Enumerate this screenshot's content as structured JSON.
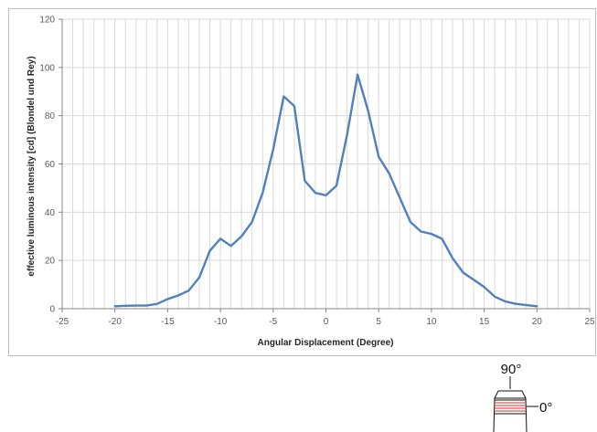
{
  "chart_data": {
    "type": "line",
    "title": "",
    "xlabel": "Angular Displacement (Degree)",
    "ylabel": "effective luminous intensity [cd] (Blondel und Rey)",
    "xlim": [
      -25,
      25
    ],
    "ylim": [
      0,
      120
    ],
    "xticks": [
      -25,
      -20,
      -15,
      -10,
      -5,
      0,
      5,
      10,
      15,
      20,
      25
    ],
    "yticks": [
      0,
      20,
      40,
      60,
      80,
      100,
      120
    ],
    "grid": true,
    "legend": "none",
    "series": [
      {
        "color": "#4f81bd",
        "x": [
          -20,
          -19,
          -18,
          -17,
          -16,
          -15,
          -14,
          -13,
          -12,
          -11,
          -10,
          -9,
          -8,
          -7,
          -6,
          -5,
          -4,
          -3,
          -2,
          -1,
          0,
          1,
          2,
          3,
          4,
          5,
          6,
          7,
          8,
          9,
          10,
          11,
          12,
          13,
          14,
          15,
          16,
          17,
          18,
          19,
          20
        ],
        "y": [
          1,
          1.2,
          1.3,
          1.3,
          2,
          4,
          5.5,
          7.5,
          13,
          24,
          29,
          26,
          30,
          36,
          48,
          66,
          88,
          84,
          53,
          48,
          47,
          51,
          72,
          97,
          82,
          63,
          56,
          46,
          36,
          32,
          31,
          29,
          21,
          15,
          12,
          9,
          5,
          3,
          2,
          1.5,
          1
        ]
      }
    ]
  },
  "orientation_icon": {
    "top_label": "90°",
    "side_label": "0°",
    "band_color": "#e03030"
  }
}
